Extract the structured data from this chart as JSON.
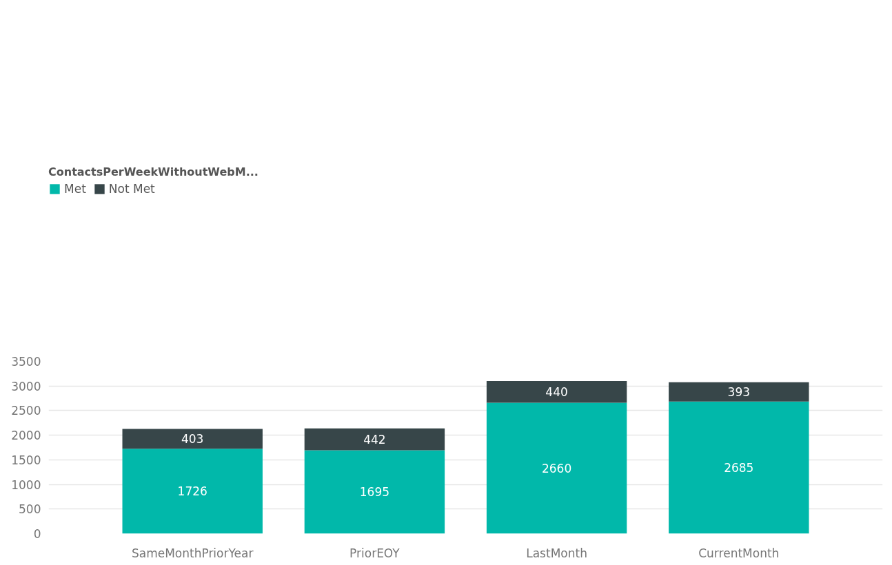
{
  "chart_data": {
    "type": "bar",
    "stacked": true,
    "legend_title": "ContactsPerWeekWithoutWebM...",
    "legend": "top left",
    "categories": [
      "SameMonthPriorYear",
      "PriorEOY",
      "LastMonth",
      "CurrentMonth"
    ],
    "series": [
      {
        "name": "Met",
        "color": "#01b8aa",
        "values": [
          1726,
          1695,
          2660,
          2685
        ]
      },
      {
        "name": "Not Met",
        "color": "#374649",
        "values": [
          403,
          442,
          440,
          393
        ]
      }
    ],
    "ylim": [
      0,
      3500
    ],
    "yticks": [
      0,
      500,
      1000,
      1500,
      2000,
      2500,
      3000,
      3500
    ],
    "grid": "y",
    "data_labels": true
  }
}
